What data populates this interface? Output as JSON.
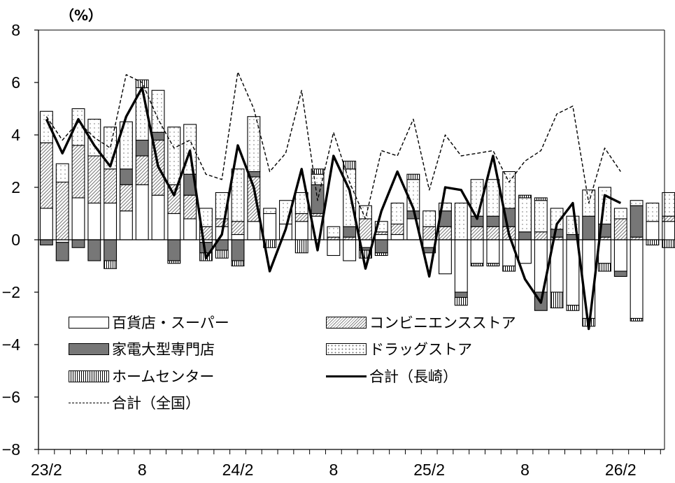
{
  "unit_label": "（%）",
  "chart_data": {
    "type": "bar",
    "stacked": true,
    "x_tick_labels": [
      "23/2",
      "8",
      "24/2",
      "8",
      "25/2",
      "8",
      "26/2"
    ],
    "x_tick_positions": [
      0,
      6,
      12,
      18,
      24,
      30,
      36
    ],
    "ylim": [
      -8,
      8
    ],
    "yticks": [
      -8,
      -6,
      -4,
      -2,
      0,
      2,
      4,
      6,
      8
    ],
    "grid": false,
    "legend_position": "lower-left",
    "series": [
      {
        "name": "百貨店・スーパー",
        "kind": "bar",
        "pattern": "white",
        "values": [
          1.2,
          -0.1,
          1.6,
          1.4,
          1.4,
          1.1,
          2.1,
          1.7,
          1.0,
          0.8,
          -0.1,
          0.5,
          0.2,
          0.7,
          1.0,
          0.6,
          0.7,
          0.9,
          -0.6,
          -0.8,
          -0.3,
          0.2,
          0.2,
          0.8,
          -0.3,
          -1.3,
          -2.0,
          -0.9,
          -0.9,
          -1.0,
          -0.9,
          -2.0,
          -2.0,
          -2.5,
          -3.0,
          -0.9,
          -1.2,
          -3.0,
          0.7,
          0.7
        ]
      },
      {
        "name": "コンビニエンスストア",
        "kind": "bar",
        "pattern": "diagonal-hatch",
        "values": [
          2.5,
          2.2,
          2.0,
          1.8,
          1.3,
          1.0,
          1.1,
          2.1,
          1.1,
          0.9,
          0.5,
          0.3,
          0.5,
          1.7,
          0.0,
          0.0,
          0.3,
          0.1,
          0.1,
          0.1,
          0.8,
          0.1,
          0.4,
          0.0,
          0.5,
          0.5,
          0.0,
          0.5,
          0.5,
          0.5,
          0.0,
          0.3,
          0.1,
          0.0,
          0.0,
          0.1,
          0.8,
          0.1,
          0.0,
          0.2
        ]
      },
      {
        "name": "家電大型専門店",
        "kind": "bar",
        "pattern": "solid-gray",
        "values": [
          -0.2,
          -0.7,
          -0.3,
          -0.8,
          -0.8,
          0.6,
          0.6,
          0.3,
          -0.8,
          0.8,
          -0.4,
          -0.4,
          -0.8,
          0.2,
          0.0,
          0.0,
          0.0,
          1.1,
          0.0,
          0.4,
          -0.1,
          -0.5,
          0.0,
          0.3,
          -0.2,
          0.6,
          -0.2,
          0.4,
          0.4,
          0.7,
          0.3,
          -0.7,
          0.3,
          0.2,
          0.9,
          0.5,
          -0.2,
          1.2,
          0.0,
          0.0
        ]
      },
      {
        "name": "ドラッグストア",
        "kind": "bar",
        "pattern": "dotted",
        "values": [
          1.2,
          0.7,
          1.4,
          1.4,
          1.6,
          1.8,
          2.0,
          1.6,
          2.2,
          1.9,
          0.7,
          1.0,
          2.0,
          2.1,
          0.2,
          0.9,
          0.8,
          0.4,
          0.4,
          2.2,
          0.5,
          0.4,
          0.8,
          1.2,
          0.6,
          0.3,
          1.4,
          1.4,
          1.4,
          1.4,
          1.3,
          1.2,
          0.8,
          0.7,
          1.0,
          1.4,
          0.4,
          0.2,
          0.7,
          0.9
        ]
      },
      {
        "name": "ホームセンター",
        "kind": "bar",
        "pattern": "vertical-stripes",
        "values": [
          0.0,
          0.0,
          0.0,
          0.0,
          -0.3,
          0.0,
          0.3,
          0.0,
          -0.1,
          0.0,
          -0.3,
          -0.3,
          -0.2,
          0.0,
          -0.3,
          0.0,
          -0.5,
          0.2,
          0.0,
          0.3,
          -0.3,
          -0.1,
          0.0,
          0.2,
          0.0,
          0.0,
          -0.3,
          -0.1,
          -0.1,
          -0.2,
          0.1,
          0.1,
          -0.6,
          -0.2,
          -0.3,
          -0.3,
          0.0,
          -0.1,
          -0.2,
          -0.3
        ]
      },
      {
        "name": "合計（長崎）",
        "kind": "line",
        "style": "thick-solid",
        "values": [
          4.6,
          3.3,
          4.6,
          3.6,
          2.8,
          4.7,
          5.8,
          2.8,
          1.7,
          3.4,
          -0.7,
          0.2,
          3.6,
          2.0,
          -1.2,
          0.4,
          2.7,
          -0.4,
          3.2,
          1.9,
          -1.1,
          1.1,
          2.6,
          1.2,
          -1.4,
          2.0,
          1.9,
          0.8,
          3.2,
          0.2,
          -1.5,
          -2.4,
          0.6,
          1.4,
          -3.4,
          1.7,
          1.4,
          null,
          null,
          null
        ]
      },
      {
        "name": "合計（全国）",
        "kind": "line",
        "style": "dashed",
        "values": [
          4.7,
          3.8,
          4.5,
          3.9,
          3.5,
          6.3,
          6.0,
          4.6,
          3.5,
          3.8,
          2.5,
          2.3,
          6.4,
          5.0,
          2.6,
          3.3,
          5.7,
          1.5,
          4.1,
          2.2,
          0.8,
          3.4,
          3.2,
          4.6,
          1.9,
          4.0,
          3.2,
          3.3,
          3.4,
          2.2,
          3.0,
          3.4,
          4.8,
          5.1,
          1.4,
          3.5,
          2.6,
          null,
          null,
          null
        ]
      }
    ]
  },
  "legend": [
    {
      "label": "百貨店・スーパー",
      "swatch": "sw-dept"
    },
    {
      "label": "コンビニエンスストア",
      "swatch": "sw-conv"
    },
    {
      "label": "家電大型専門店",
      "swatch": "sw-elec"
    },
    {
      "label": "ドラッグストア",
      "swatch": "sw-drug"
    },
    {
      "label": "ホームセンター",
      "swatch": "sw-home"
    },
    {
      "label": "合計（長崎）",
      "swatch": "line-thick"
    },
    {
      "label": "合計（全国）",
      "swatch": "line-dash"
    }
  ]
}
